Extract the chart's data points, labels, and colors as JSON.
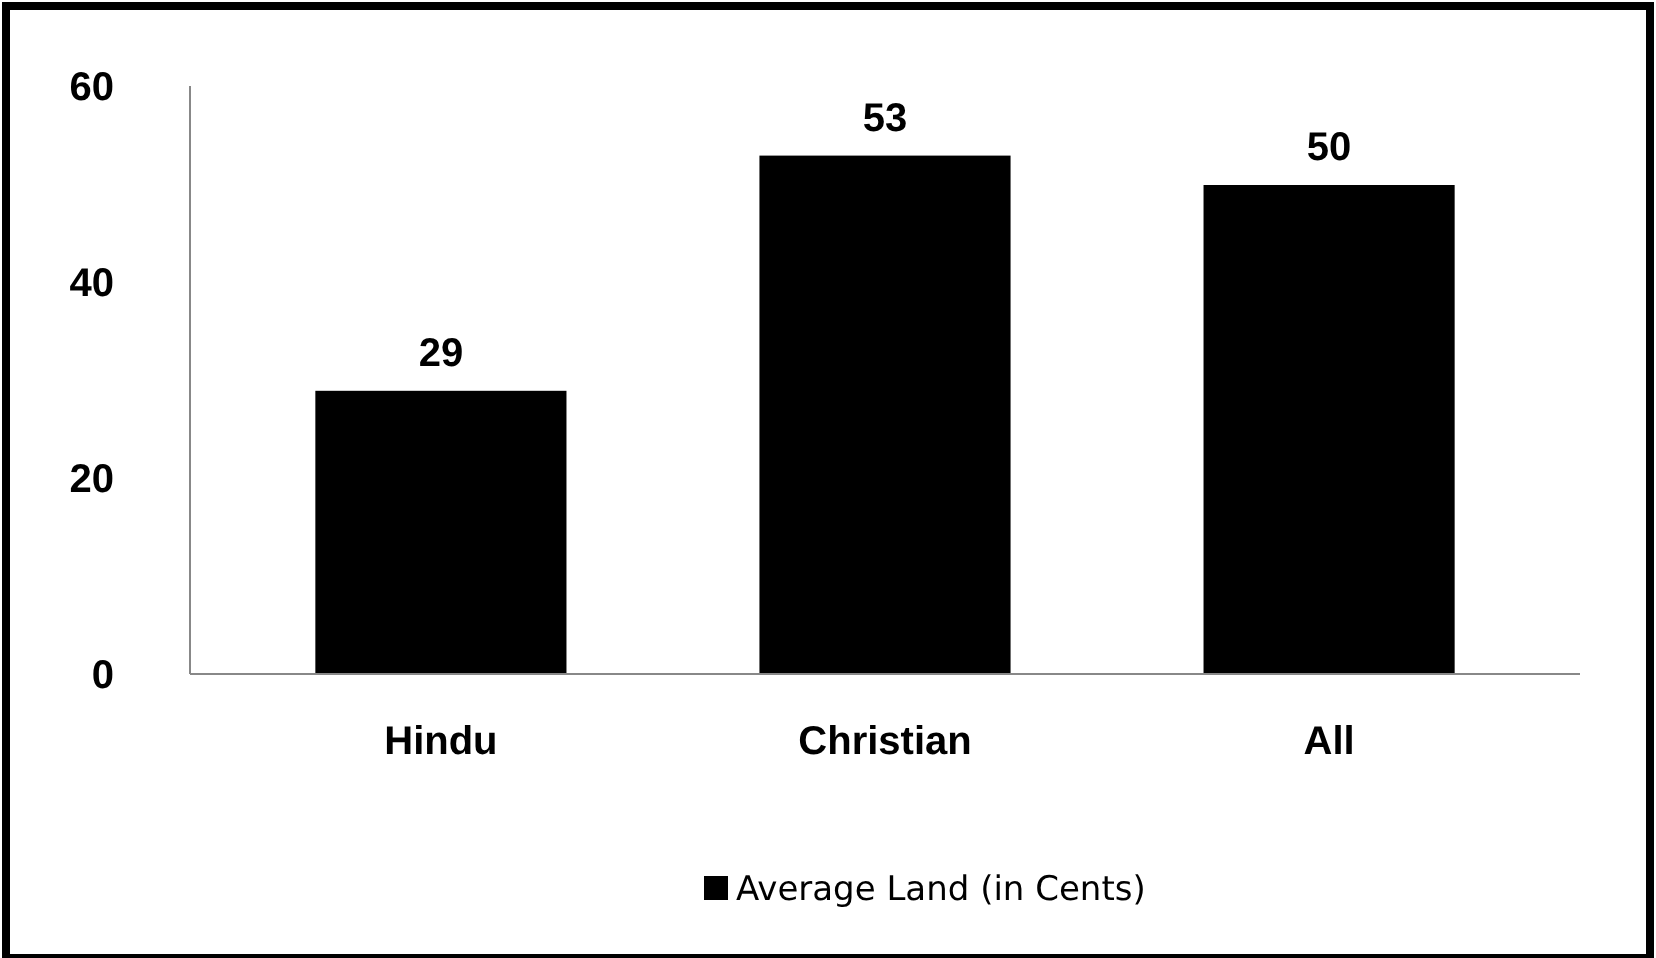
{
  "chart_data": {
    "type": "bar",
    "categories": [
      "Hindu",
      "Christian",
      "All"
    ],
    "series": [
      {
        "name": "Average Land (in Cents)",
        "color": "#000000",
        "values": [
          29,
          53,
          50
        ]
      }
    ],
    "ylim": [
      0,
      60
    ],
    "yticks": [
      0,
      20,
      40,
      60
    ],
    "data_labels": true,
    "legend": "bottom",
    "grid": false
  }
}
